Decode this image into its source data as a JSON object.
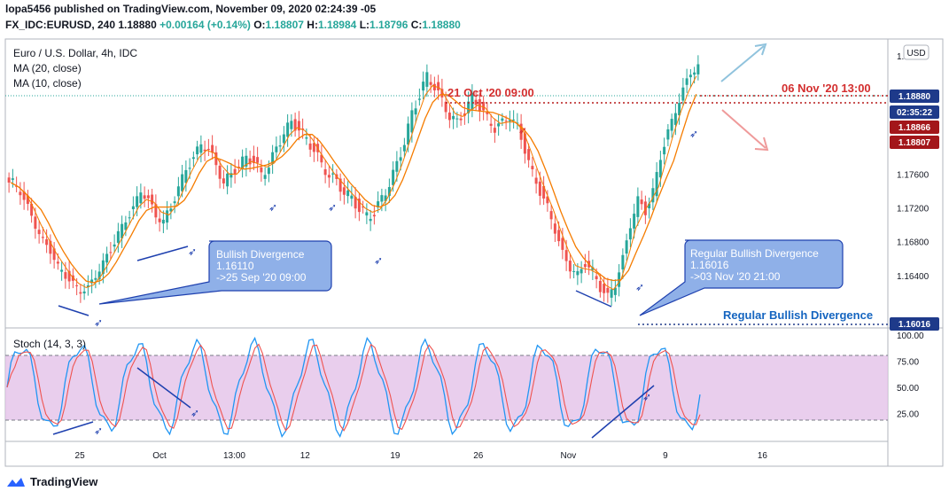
{
  "header": {
    "published": "lopa5456 published on TradingView.com, November 09, 2020 02:24:39 -05",
    "symbol_line": {
      "prefix": "FX_IDC:EURUSD, 240",
      "last": "1.18880",
      "change": "+0.00164 (+0.14%)",
      "o_label": "O:",
      "o": "1.18807",
      "h_label": "H:",
      "h": "1.18984",
      "l_label": "L:",
      "l": "1.18796",
      "c_label": "C:",
      "c": "1.18880"
    }
  },
  "legend": {
    "title": "Euro / U.S. Dollar, 4h, IDC",
    "ma20": "MA (20, close)",
    "ma10": "MA (10, close)"
  },
  "stoch_legend": "Stoch (14, 3, 3)",
  "currency_badge": "USD",
  "watermark": "TradingView",
  "annotations": {
    "high_left": "21 Oct '20 09:00",
    "high_right": "06 Nov '20 13:00",
    "callout1": [
      "Bullish Divergence",
      "1.16110",
      "->25 Sep '20 09:00"
    ],
    "callout2": [
      "Regular Bullish Divergence",
      "1.16016",
      "->03 Nov '20 21:00"
    ],
    "bottom_label": "Regular Bullish Divergence"
  },
  "price_tags": [
    {
      "text": "1.18880",
      "color": "#1e3a8a"
    },
    {
      "text": "02:35:22",
      "color": "#1e3a8a"
    },
    {
      "text": "1.18866",
      "color": "#a3161a"
    },
    {
      "text": "1.18807",
      "color": "#a3161a"
    },
    {
      "text": "1.16016",
      "color": "#1e3a8a"
    }
  ],
  "colors": {
    "up": "#26a69a",
    "down": "#ef5350",
    "ma20": "#f57c00",
    "ma10": "#f57c00",
    "stoch_k": "#2196f3",
    "stoch_d": "#ef5350",
    "band": "#e1bee7"
  },
  "chart_data": [
    {
      "type": "candlestick",
      "title": "Euro / U.S. Dollar, 4h, IDC",
      "x_ticks": [
        "25",
        "Oct",
        "13:00",
        "12",
        "19",
        "26",
        "Nov",
        "9",
        "16"
      ],
      "y_ticks": [
        "1.19000",
        "1.18000",
        "1.17600",
        "1.17200",
        "1.16800",
        "1.16400"
      ],
      "ylim": [
        1.158,
        1.192
      ],
      "close_series_approx": [
        1.175,
        1.174,
        1.172,
        1.17,
        1.168,
        1.167,
        1.165,
        1.164,
        1.163,
        1.1622,
        1.1625,
        1.164,
        1.1655,
        1.167,
        1.169,
        1.1705,
        1.172,
        1.174,
        1.173,
        1.171,
        1.1705,
        1.172,
        1.1745,
        1.1765,
        1.178,
        1.1795,
        1.179,
        1.177,
        1.175,
        1.176,
        1.177,
        1.178,
        1.1775,
        1.176,
        1.177,
        1.179,
        1.181,
        1.182,
        1.1815,
        1.18,
        1.179,
        1.177,
        1.176,
        1.175,
        1.174,
        1.173,
        1.172,
        1.171,
        1.1715,
        1.173,
        1.175,
        1.177,
        1.18,
        1.183,
        1.1855,
        1.1875,
        1.1865,
        1.1845,
        1.183,
        1.182,
        1.1835,
        1.185,
        1.184,
        1.1825,
        1.1815,
        1.182,
        1.183,
        1.1815,
        1.179,
        1.176,
        1.174,
        1.172,
        1.1695,
        1.1665,
        1.165,
        1.164,
        1.1655,
        1.1645,
        1.1625,
        1.1615,
        1.163,
        1.166,
        1.17,
        1.173,
        1.1715,
        1.174,
        1.178,
        1.181,
        1.1835,
        1.186,
        1.188,
        1.1888
      ]
    },
    {
      "type": "line",
      "title": "Stoch (14, 3, 3)",
      "y_ticks": [
        "100.00",
        "75.00",
        "50.00",
        "25.00"
      ],
      "ylim": [
        0,
        100
      ],
      "band": [
        20,
        80
      ]
    }
  ]
}
